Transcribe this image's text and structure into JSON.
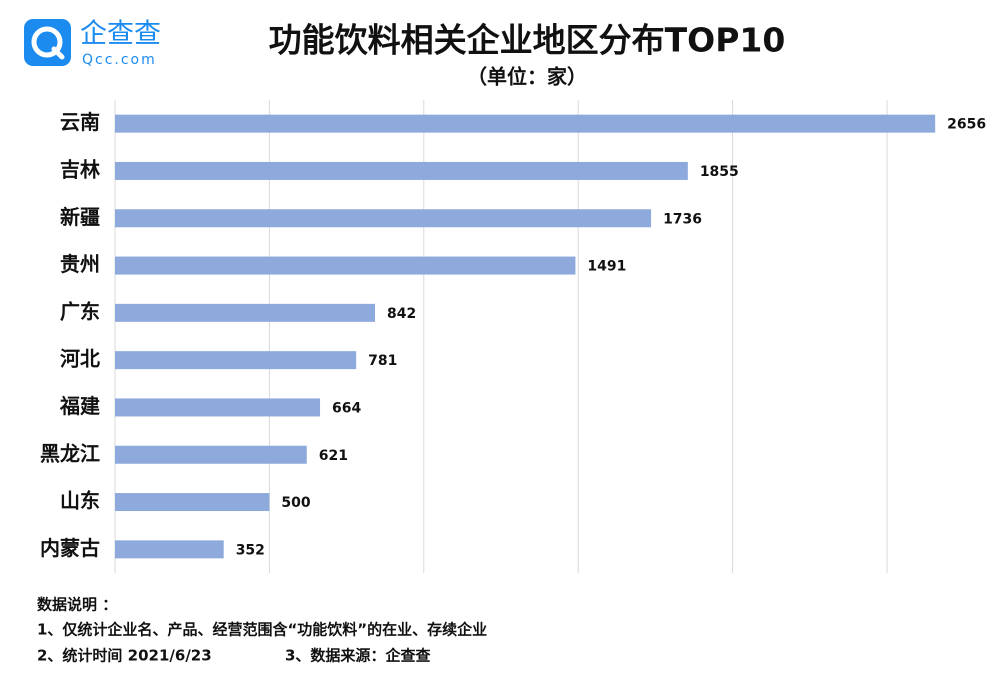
{
  "logo": {
    "name": "企查查",
    "domain": "Qcc.com"
  },
  "chart_data": {
    "type": "hbar",
    "title": "功能饮料相关企业地区分布TOP10",
    "subtitle": "（单位：家）",
    "categories": [
      "云南",
      "吉林",
      "新疆",
      "贵州",
      "广东",
      "河北",
      "福建",
      "黑龙江",
      "山东",
      "内蒙古"
    ],
    "values": [
      2656,
      1855,
      1736,
      1491,
      842,
      781,
      664,
      621,
      500,
      352
    ],
    "color": "#8eaadc",
    "xlim": [
      0,
      2500
    ],
    "xticks": [
      0,
      500,
      1000,
      1500,
      2000,
      2500
    ],
    "grid": true
  },
  "notes": [
    "数据说明 ：",
    "1、仅统计企业名、产品、经营范围含“功能饮料”的在业、存续企业",
    "2、统计时间 2021/6/23",
    "3、数据来源：企查查"
  ]
}
